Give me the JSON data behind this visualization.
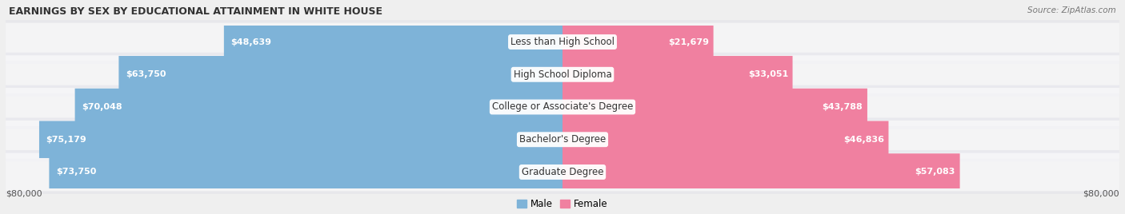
{
  "title": "EARNINGS BY SEX BY EDUCATIONAL ATTAINMENT IN WHITE HOUSE",
  "source": "Source: ZipAtlas.com",
  "categories": [
    "Less than High School",
    "High School Diploma",
    "College or Associate's Degree",
    "Bachelor's Degree",
    "Graduate Degree"
  ],
  "male_values": [
    48639,
    63750,
    70048,
    75179,
    73750
  ],
  "female_values": [
    21679,
    33051,
    43788,
    46836,
    57083
  ],
  "max_val": 80000,
  "male_color": "#7EB3D8",
  "female_color": "#F080A0",
  "bg_color": "#EFEFEF",
  "title_fontsize": 9,
  "source_fontsize": 7.5,
  "bar_label_fontsize": 8,
  "cat_label_fontsize": 8.5,
  "axis_label_fontsize": 8
}
